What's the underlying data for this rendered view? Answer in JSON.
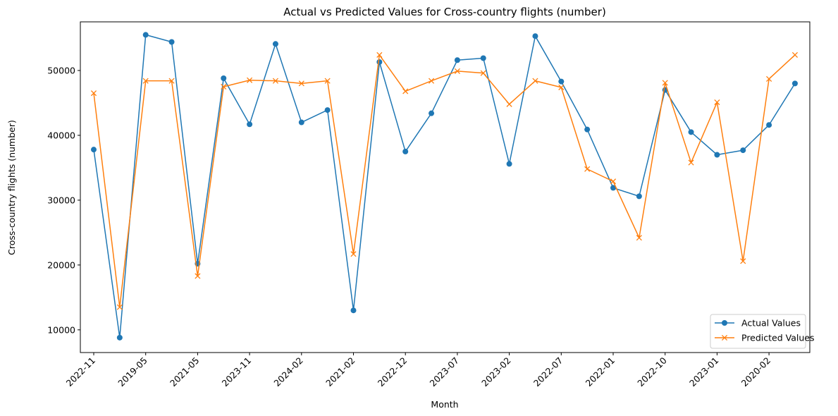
{
  "chart_data": {
    "type": "line",
    "title": "Actual vs Predicted Values for Cross-country flights (number)",
    "xlabel": "Month",
    "ylabel": "Cross-country flights (number)",
    "ylim": [
      6500,
      57500
    ],
    "yticks": [
      10000,
      20000,
      30000,
      40000,
      50000
    ],
    "xtick_labels": [
      "2022-11",
      "2019-05",
      "2021-05",
      "2023-11",
      "2024-02",
      "2021-02",
      "2022-12",
      "2023-07",
      "2023-02",
      "2022-07",
      "2022-01",
      "2022-10",
      "2023-01",
      "2020-02"
    ],
    "grid": false,
    "legend_position": "lower-right",
    "series": [
      {
        "name": "Actual Values",
        "color": "#1f77b4",
        "marker": "circle",
        "values": [
          37800,
          8800,
          55500,
          54400,
          20200,
          48800,
          41700,
          54100,
          42000,
          43900,
          13000,
          51300,
          37500,
          43400,
          51600,
          51900,
          35600,
          55300,
          48300,
          40900,
          31900,
          30600,
          47000,
          40500,
          37000,
          37700,
          41600,
          48000
        ]
      },
      {
        "name": "Predicted Values",
        "color": "#ff7f0e",
        "marker": "x",
        "values": [
          46500,
          13500,
          48400,
          48400,
          18300,
          47500,
          48500,
          48400,
          48000,
          48400,
          21700,
          52400,
          46800,
          48400,
          49900,
          49600,
          44800,
          48400,
          47400,
          34800,
          32900,
          24200,
          48100,
          35800,
          45100,
          20600,
          48700,
          52400
        ]
      }
    ]
  }
}
